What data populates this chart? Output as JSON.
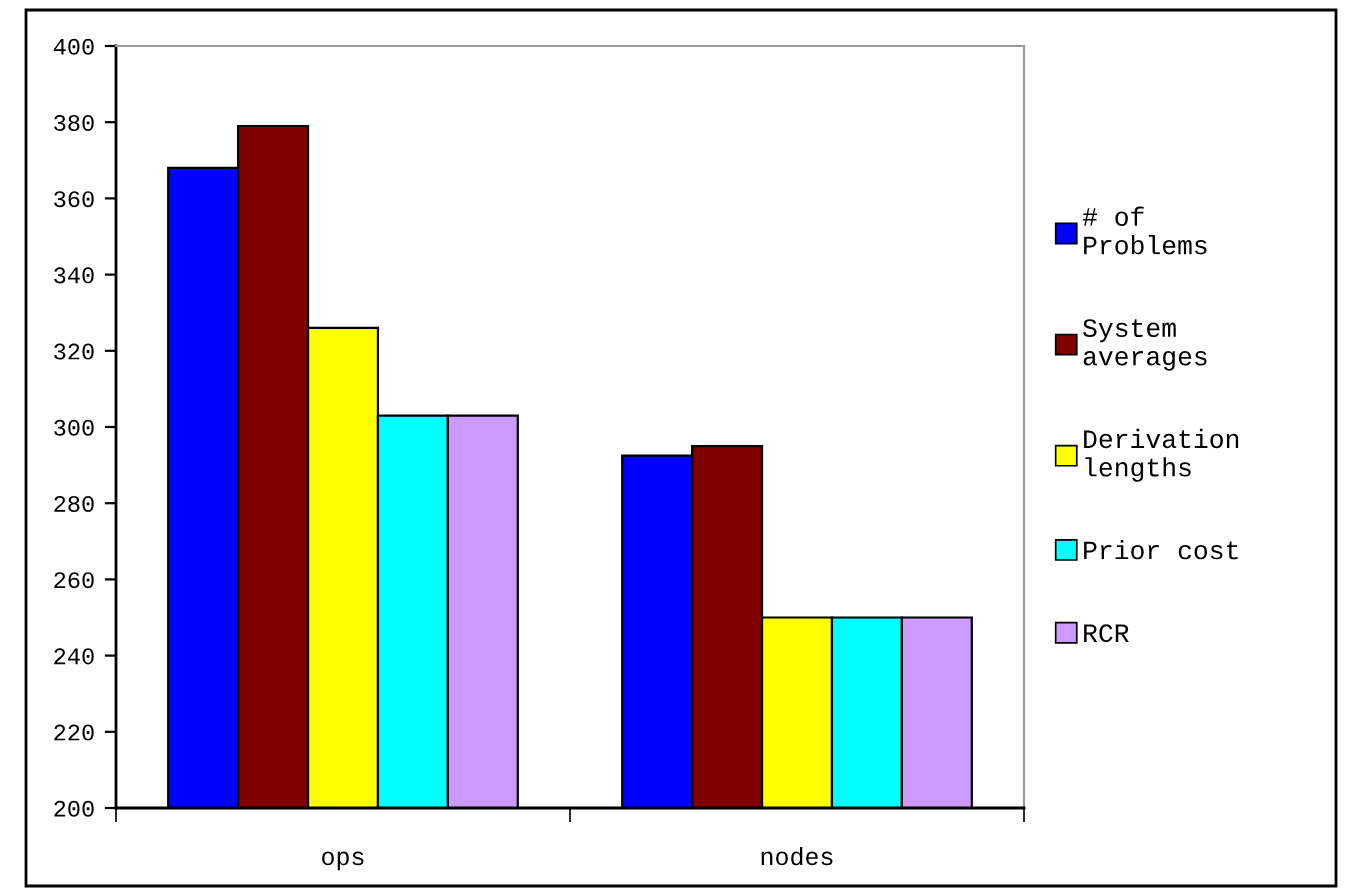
{
  "chart_data": {
    "type": "bar",
    "categories": [
      "ops",
      "nodes"
    ],
    "series": [
      {
        "name": "# of\nProblems",
        "color": "#0000ff",
        "values": [
          368,
          292.5
        ]
      },
      {
        "name": "System\naverages",
        "color": "#800000",
        "values": [
          379,
          295
        ]
      },
      {
        "name": "Derivation\nlengths",
        "color": "#ffff00",
        "values": [
          326,
          250
        ]
      },
      {
        "name": "Prior cost",
        "color": "#00ffff",
        "values": [
          303,
          250
        ]
      },
      {
        "name": "RCR",
        "color": "#cc99ff",
        "values": [
          303,
          250
        ]
      }
    ],
    "ylim": [
      200,
      400
    ],
    "yticks": [
      200,
      220,
      240,
      260,
      280,
      300,
      320,
      340,
      360,
      380,
      400
    ],
    "grid": false,
    "legend": "right"
  }
}
